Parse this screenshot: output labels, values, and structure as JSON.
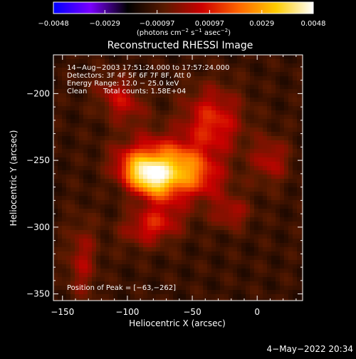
{
  "chart_data": {
    "type": "heatmap",
    "title": "Reconstructed RHESSI Image",
    "xlabel": "Heliocentric X (arcsec)",
    "ylabel": "Heliocentric Y (arcsec)",
    "xlim": [
      -157,
      35
    ],
    "ylim": [
      -355,
      -171
    ],
    "xticks": [
      {
        "value": -150,
        "label": "−150"
      },
      {
        "value": -100,
        "label": "−100"
      },
      {
        "value": -50,
        "label": "−50"
      },
      {
        "value": 0,
        "label": "0"
      }
    ],
    "yticks": [
      {
        "value": -200,
        "label": "−200"
      },
      {
        "value": -250,
        "label": "−250"
      },
      {
        "value": -300,
        "label": "−300"
      },
      {
        "value": -350,
        "label": "−350"
      }
    ],
    "colorbar": {
      "range": [
        -0.0048,
        0.0048
      ],
      "ticks": [
        {
          "value": -0.0048,
          "label": "−0.0048"
        },
        {
          "value": -0.0029,
          "label": "−0.0029"
        },
        {
          "value": -0.00097,
          "label": "−0.00097"
        },
        {
          "value": 0.00097,
          "label": "0.00097"
        },
        {
          "value": 0.0029,
          "label": "0.0029"
        },
        {
          "value": 0.0048,
          "label": "0.0048"
        }
      ],
      "unit_prefix": "(photons cm",
      "unit_exp1": "−2",
      "unit_mid1": " s",
      "unit_exp2": "−1",
      "unit_mid2": " asec",
      "unit_exp3": "−2",
      "unit_suffix": ")",
      "colors": [
        "#0000ff",
        "#7a00ff",
        "#000000",
        "#5a1a00",
        "#cc0000",
        "#ff6600",
        "#ffcc00",
        "#ffffff"
      ]
    },
    "annotations": {
      "time_range": "14−Aug−2003 17:51:24.000 to 17:57:24.000",
      "detectors": "Detectors: 3F 4F 5F 6F 7F 8F, Att 0",
      "energy_range": "Energy Range: 12.0 − 25.0 keV",
      "method": "Clean",
      "total_counts": "Total counts: 1.58E+04",
      "peak_position": "Position of Peak = [−63,−262]"
    },
    "peak": {
      "x": -63,
      "y": -262
    },
    "background_level": -0.0012,
    "sources": [
      {
        "x": -85,
        "y": -262,
        "sigma_x": 16,
        "sigma_y": 10,
        "angle_deg": -30,
        "amplitude": 0.0052
      },
      {
        "x": -60,
        "y": -255,
        "sigma_x": 22,
        "sigma_y": 12,
        "angle_deg": -25,
        "amplitude": 0.004
      },
      {
        "x": -35,
        "y": -222,
        "sigma_x": 16,
        "sigma_y": 18,
        "angle_deg": 0,
        "amplitude": 0.0024
      },
      {
        "x": -105,
        "y": -205,
        "sigma_x": 14,
        "sigma_y": 10,
        "angle_deg": -40,
        "amplitude": 0.0018
      },
      {
        "x": -80,
        "y": -298,
        "sigma_x": 16,
        "sigma_y": 10,
        "angle_deg": 15,
        "amplitude": 0.0022
      },
      {
        "x": -135,
        "y": -325,
        "sigma_x": 8,
        "sigma_y": 20,
        "angle_deg": 0,
        "amplitude": 0.0014
      },
      {
        "x": 10,
        "y": -250,
        "sigma_x": 10,
        "sigma_y": 12,
        "angle_deg": 0,
        "amplitude": 0.0016
      },
      {
        "x": -20,
        "y": -290,
        "sigma_x": 10,
        "sigma_y": 8,
        "angle_deg": 0,
        "amplitude": 0.0014
      }
    ]
  },
  "footer": {
    "date": "4−May−2022 20:34"
  }
}
